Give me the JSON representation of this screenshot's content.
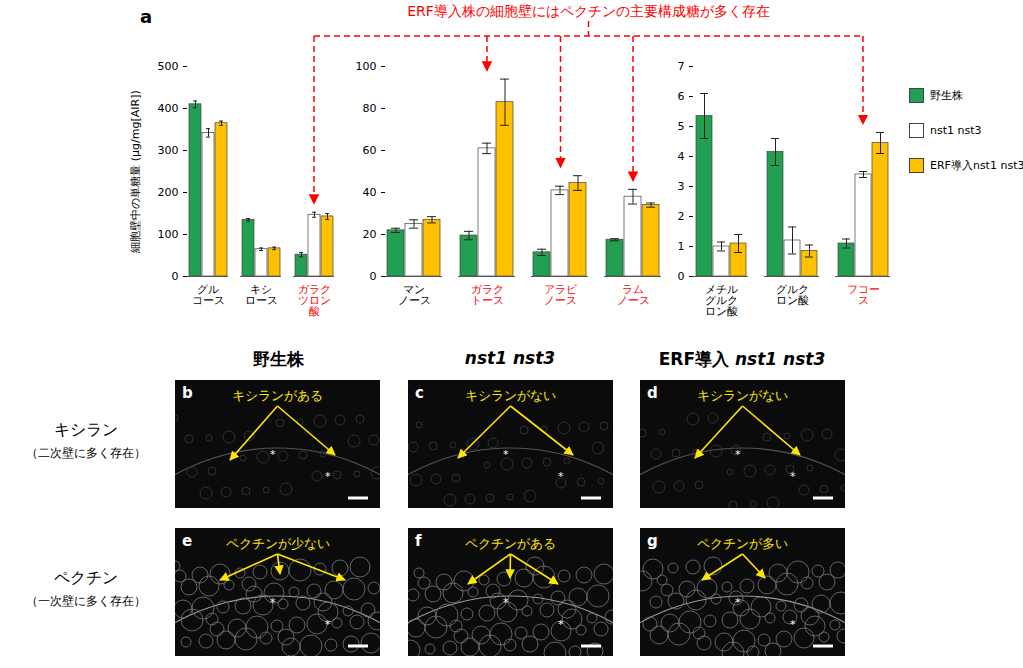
{
  "figure_label": "a",
  "annotation": {
    "text": "ERF導入株の細胞壁にはペクチンの主要構成糖が多く存在",
    "color": "#ff0000",
    "targets": [
      "ガラク\nツロン\n酸",
      "ガラク\nトース",
      "アラビ\nノース",
      "ラム\nノース",
      "フコー\nス"
    ]
  },
  "chart_data": [
    {
      "type": "bar",
      "ylabel": "細胞壁中の単糖量 (μg/mg[AIR])",
      "categories": [
        "グル\nコース",
        "キシ\nロース",
        "ガラク\nツロン\n酸"
      ],
      "series": [
        {
          "name": "野生株",
          "color": "#20a050",
          "values": [
            410,
            135,
            52
          ],
          "errors": [
            8,
            3,
            5
          ]
        },
        {
          "name": "nst1 nst3",
          "color": "#ffffff",
          "values": [
            342,
            65,
            147
          ],
          "errors": [
            10,
            3,
            6
          ]
        },
        {
          "name": "ERF導入nst1 nst3",
          "color": "#ffc000",
          "values": [
            365,
            67,
            143
          ],
          "errors": [
            5,
            3,
            7
          ]
        }
      ],
      "ylim": [
        0,
        500
      ],
      "yticks": [
        0,
        100,
        200,
        300,
        400,
        500
      ],
      "grid": false
    },
    {
      "type": "bar",
      "categories": [
        "マン\nノース",
        "ガラク\nトース",
        "アラビ\nノース",
        "ラム\nノース"
      ],
      "series": [
        {
          "name": "野生株",
          "color": "#20a050",
          "values": [
            22,
            19.5,
            11.5,
            17.5
          ],
          "errors": [
            1,
            2,
            1.5,
            0.5
          ]
        },
        {
          "name": "nst1 nst3",
          "color": "#ffffff",
          "values": [
            25,
            61,
            41,
            38
          ],
          "errors": [
            2,
            2.5,
            2,
            3.5
          ]
        },
        {
          "name": "ERF導入nst1 nst3",
          "color": "#ffc000",
          "values": [
            27,
            83,
            44.5,
            34
          ],
          "errors": [
            1.5,
            11,
            3.5,
            1
          ]
        }
      ],
      "ylim": [
        0,
        100
      ],
      "yticks": [
        0,
        20,
        40,
        60,
        80,
        100
      ],
      "grid": false
    },
    {
      "type": "bar",
      "categories": [
        "メチル\nグルク\nロン酸",
        "グルク\nロン酸",
        "フコー\nス"
      ],
      "series": [
        {
          "name": "野生株",
          "color": "#20a050",
          "values": [
            5.35,
            4.15,
            1.1
          ],
          "errors": [
            0.75,
            0.45,
            0.15
          ]
        },
        {
          "name": "nst1 nst3",
          "color": "#ffffff",
          "values": [
            1.0,
            1.2,
            3.4
          ],
          "errors": [
            0.15,
            0.45,
            0.1
          ]
        },
        {
          "name": "ERF導入nst1 nst3",
          "color": "#ffc000",
          "values": [
            1.1,
            0.85,
            4.45
          ],
          "errors": [
            0.3,
            0.2,
            0.35
          ]
        }
      ],
      "ylim": [
        0,
        7
      ],
      "yticks": [
        0,
        1,
        2,
        3,
        4,
        5,
        6,
        7
      ],
      "grid": false,
      "legend": "right"
    }
  ],
  "panels": {
    "columns": [
      "野生株",
      "nst1 nst3",
      "ERF導入 nst1 nst3"
    ],
    "rows": [
      {
        "title": "キシラン",
        "subtitle": "（二次壁に多く存在）",
        "cells": [
          {
            "letter": "b",
            "text": "キシランがある"
          },
          {
            "letter": "c",
            "text": "キシランがない"
          },
          {
            "letter": "d",
            "text": "キシランがない"
          }
        ]
      },
      {
        "title": "ペクチン",
        "subtitle": "（一次壁に多く存在）",
        "cells": [
          {
            "letter": "e",
            "text": "ペクチンが少ない"
          },
          {
            "letter": "f",
            "text": "ペクチンがある"
          },
          {
            "letter": "g",
            "text": "ペクチンが多い"
          }
        ]
      }
    ],
    "asterisk": "*"
  }
}
